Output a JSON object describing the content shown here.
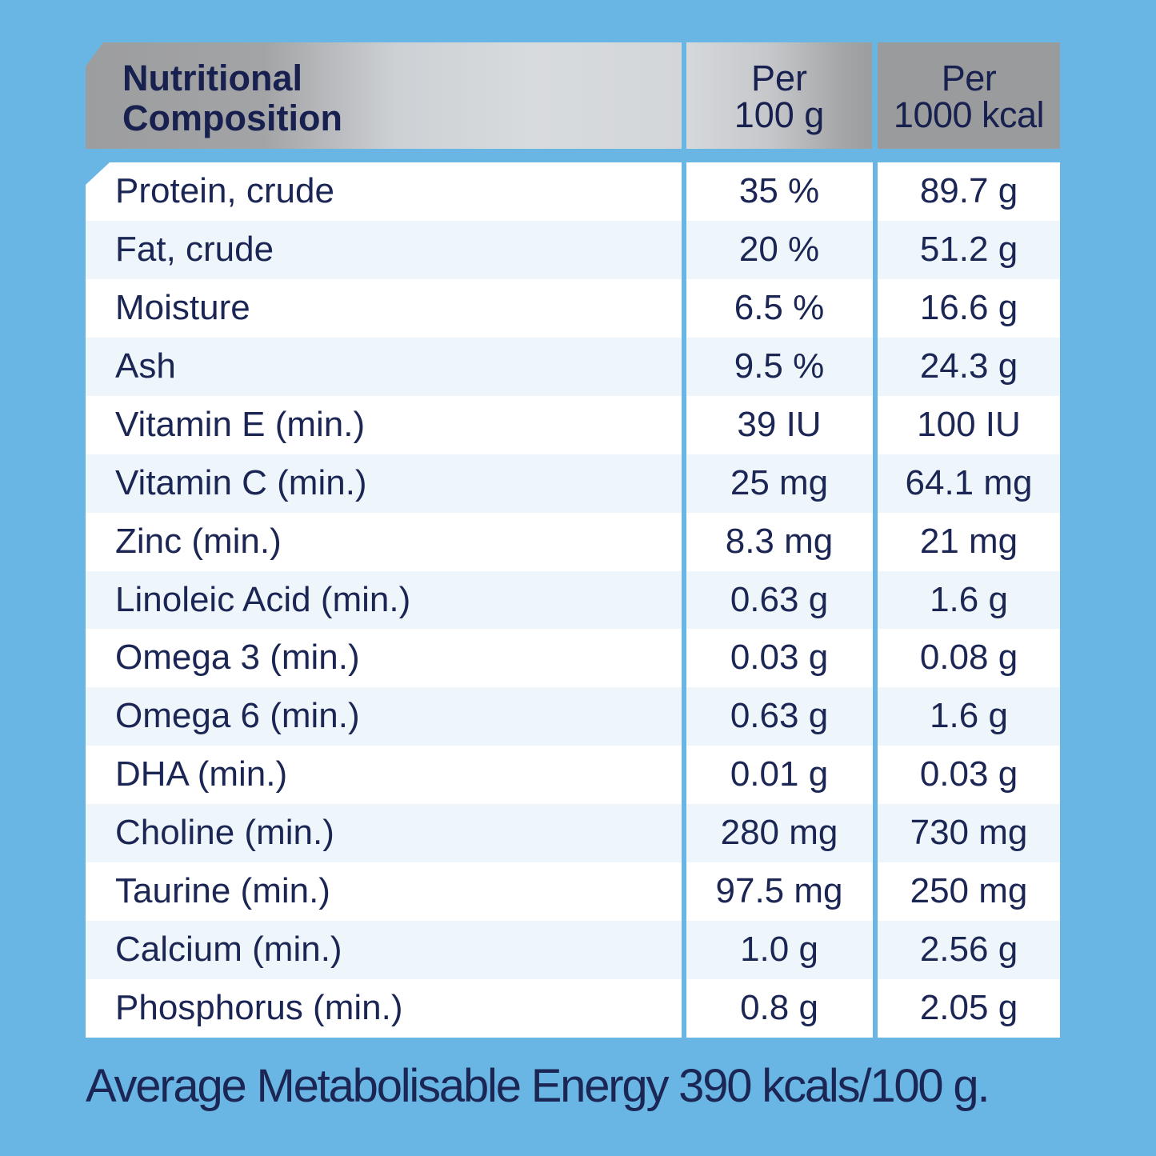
{
  "colors": {
    "background": "#69b5e4",
    "text": "#1b2654",
    "header_gray": "#9a9b9d",
    "row_alt": "#eef6fc",
    "row": "#ffffff"
  },
  "header": {
    "label_line1": "Nutritional",
    "label_line2": "Composition",
    "col2_line1": "Per",
    "col2_line2": "100 g",
    "col3_line1": "Per",
    "col3_line2": "1000 kcal"
  },
  "rows": [
    {
      "name": "Protein, crude",
      "per100g": "35 %",
      "per1000kcal": "89.7 g"
    },
    {
      "name": "Fat, crude",
      "per100g": "20 %",
      "per1000kcal": "51.2 g"
    },
    {
      "name": "Moisture",
      "per100g": "6.5 %",
      "per1000kcal": "16.6 g"
    },
    {
      "name": "Ash",
      "per100g": "9.5 %",
      "per1000kcal": "24.3 g"
    },
    {
      "name": "Vitamin E (min.)",
      "per100g": "39 IU",
      "per1000kcal": "100 IU"
    },
    {
      "name": "Vitamin C (min.)",
      "per100g": "25 mg",
      "per1000kcal": "64.1 mg"
    },
    {
      "name": "Zinc (min.)",
      "per100g": "8.3 mg",
      "per1000kcal": "21 mg"
    },
    {
      "name": "Linoleic Acid (min.)",
      "per100g": "0.63 g",
      "per1000kcal": "1.6 g"
    },
    {
      "name": "Omega 3 (min.)",
      "per100g": "0.03 g",
      "per1000kcal": "0.08 g"
    },
    {
      "name": "Omega 6 (min.)",
      "per100g": "0.63 g",
      "per1000kcal": "1.6 g"
    },
    {
      "name": "DHA (min.)",
      "per100g": "0.01 g",
      "per1000kcal": "0.03 g"
    },
    {
      "name": "Choline (min.)",
      "per100g": "280 mg",
      "per1000kcal": "730 mg"
    },
    {
      "name": "Taurine (min.)",
      "per100g": "97.5 mg",
      "per1000kcal": "250 mg"
    },
    {
      "name": "Calcium (min.)",
      "per100g": "1.0 g",
      "per1000kcal": "2.56 g"
    },
    {
      "name": "Phosphorus (min.)",
      "per100g": "0.8 g",
      "per1000kcal": "2.05 g"
    }
  ],
  "footer": {
    "text": "Average Metabolisable Energy 390 kcals/100 g."
  }
}
